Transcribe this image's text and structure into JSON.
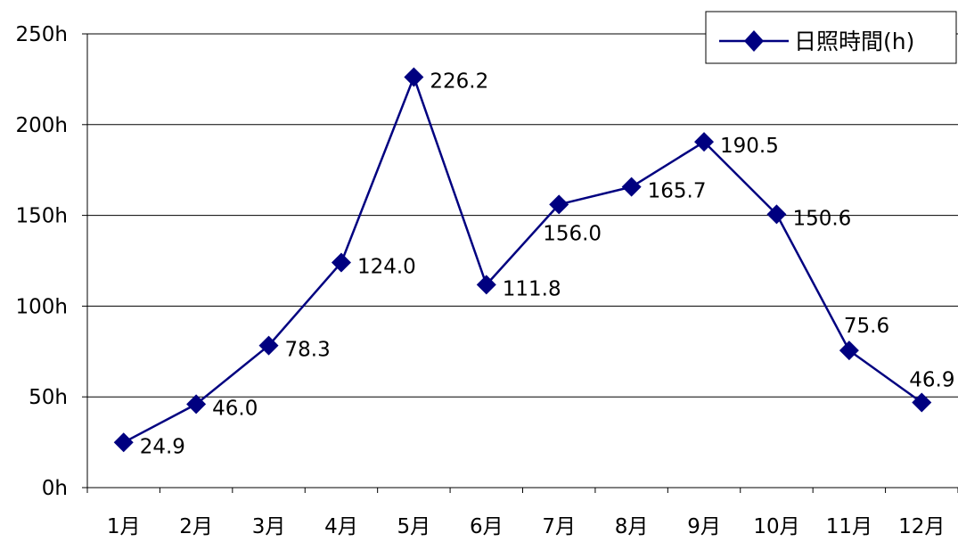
{
  "chart_data": {
    "type": "line",
    "categories": [
      "1月",
      "2月",
      "3月",
      "4月",
      "5月",
      "6月",
      "7月",
      "8月",
      "9月",
      "10月",
      "11月",
      "12月"
    ],
    "series": [
      {
        "name": "日照時間(h)",
        "values": [
          24.9,
          46.0,
          78.3,
          124.0,
          226.2,
          111.8,
          156.0,
          165.7,
          190.5,
          150.6,
          75.6,
          46.9
        ],
        "value_labels": [
          "24.9",
          "46.0",
          "78.3",
          "124.0",
          "226.2",
          "111.8",
          "156.0",
          "165.7",
          "190.5",
          "150.6",
          "75.6",
          "46.9"
        ],
        "color": "#000080",
        "marker": "diamond"
      }
    ],
    "y_ticks": [
      0,
      50,
      100,
      150,
      200,
      250
    ],
    "y_tick_labels": [
      "0h",
      "50h",
      "100h",
      "150h",
      "200h",
      "250h"
    ],
    "ylim": [
      0,
      250
    ],
    "grid": true,
    "legend": {
      "position": "top-right",
      "label": "日照時間(h)"
    },
    "title": "",
    "xlabel": "",
    "ylabel": ""
  }
}
